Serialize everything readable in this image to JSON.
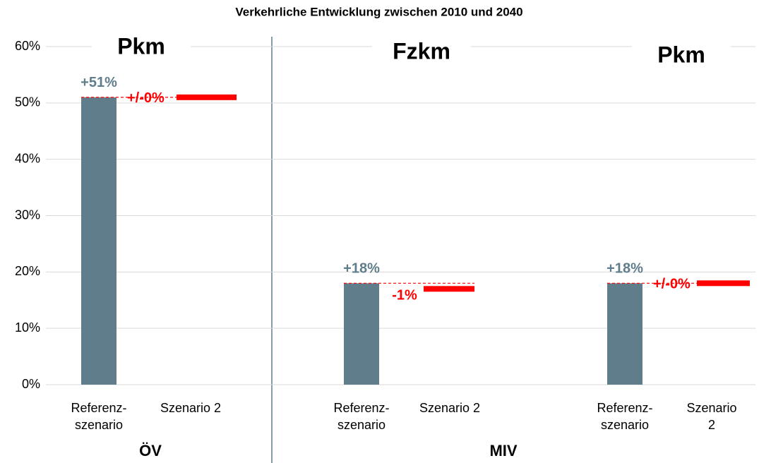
{
  "chart_data": {
    "type": "bar",
    "title": "Verkehrliche Entwicklung zwischen 2010 und 2040",
    "ylim": [
      0,
      60
    ],
    "yticks": [
      {
        "value": 0,
        "label": "0%"
      },
      {
        "value": 10,
        "label": "10%"
      },
      {
        "value": 20,
        "label": "20%"
      },
      {
        "value": 30,
        "label": "30%"
      },
      {
        "value": 40,
        "label": "40%"
      },
      {
        "value": 50,
        "label": "50%"
      },
      {
        "value": 60,
        "label": "60%"
      }
    ],
    "grid": true,
    "categories": [
      "Referenz-\nszenario",
      "Szenario 2"
    ],
    "bar_color": "#607d8b",
    "change_color": "#ff0000",
    "panels": [
      {
        "label": "Pkm",
        "reference": 51,
        "reference_label": "+51%",
        "change": 0,
        "change_label": "+/-0%"
      },
      {
        "label": "Fzkm",
        "reference": 18,
        "reference_label": "+18%",
        "change": -1,
        "change_label": "-1%"
      },
      {
        "label": "Pkm",
        "reference": 18,
        "reference_label": "+18%",
        "change": 0,
        "change_label": "+/-0%"
      }
    ],
    "sections": [
      "ÖV",
      "MIV"
    ]
  }
}
